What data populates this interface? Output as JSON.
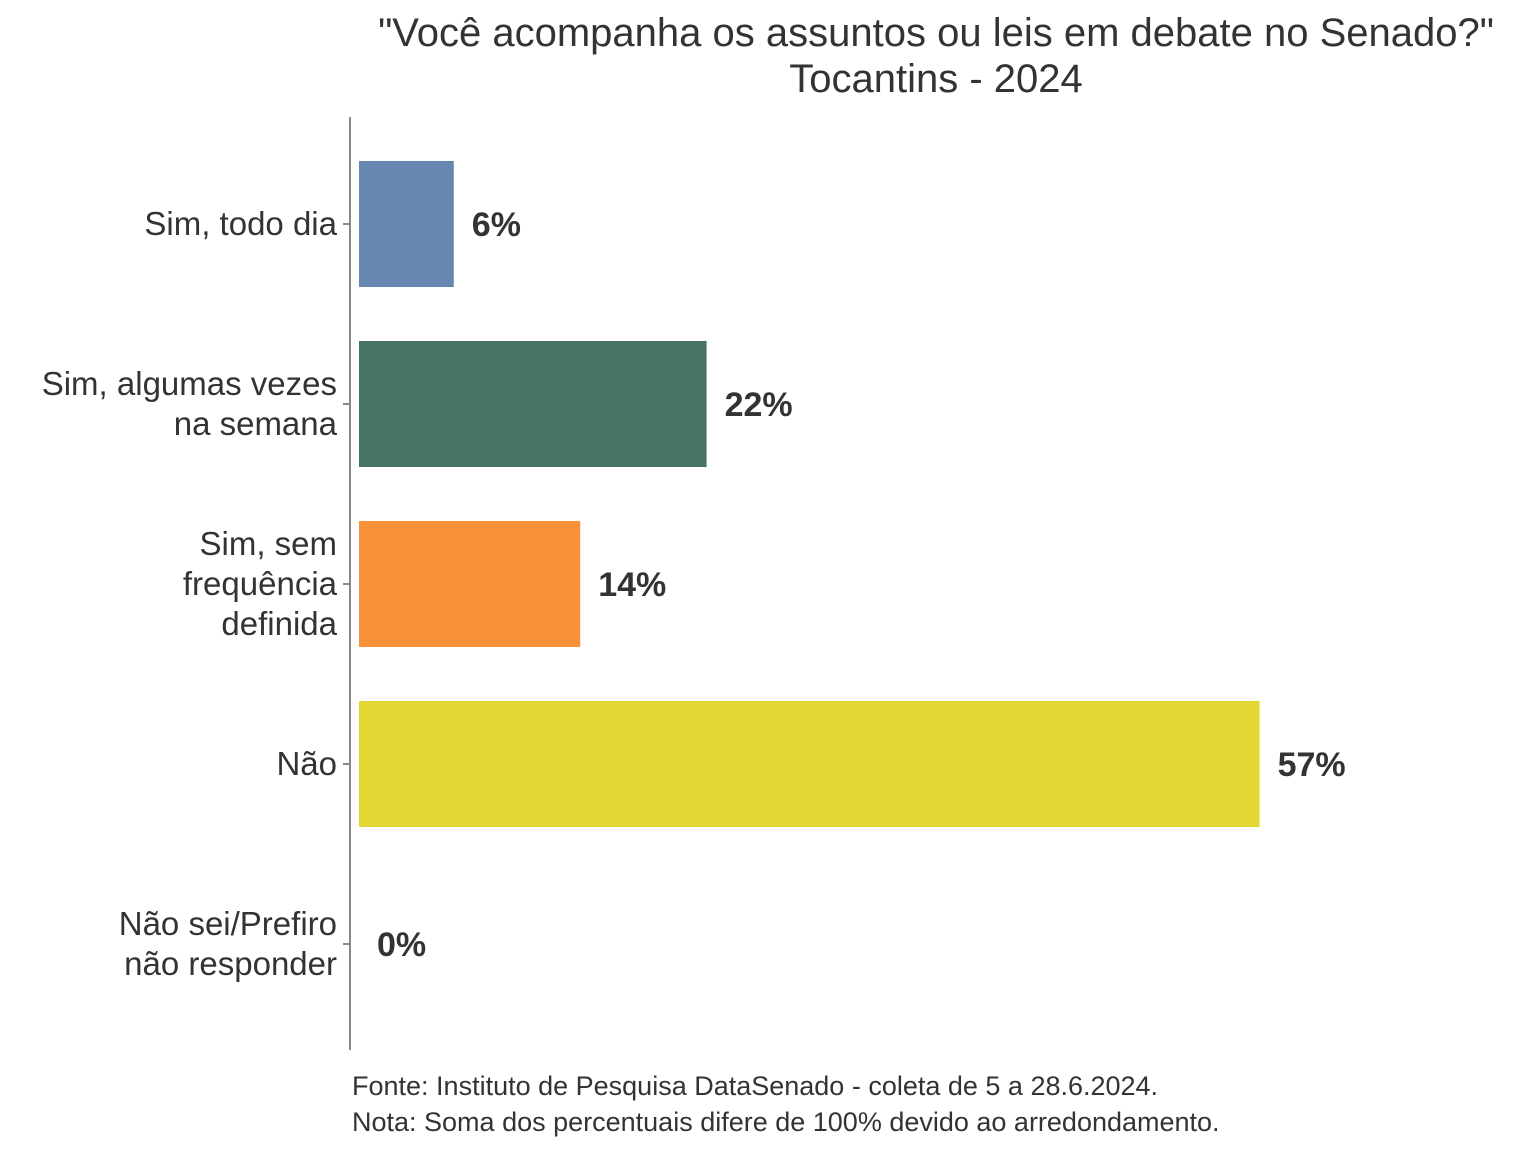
{
  "chart_data": {
    "type": "bar",
    "orientation": "horizontal",
    "title": "\"Você acompanha os assuntos ou leis em debate no Senado?\"",
    "subtitle": "Tocantins - 2024",
    "categories": [
      "Sim, todo dia",
      "Sim, algumas vezes na semana",
      "Sim, sem frequência definida",
      "Não",
      "Não sei/Prefiro não responder"
    ],
    "category_lines": [
      [
        "Sim, todo dia"
      ],
      [
        "Sim, algumas vezes",
        "na semana"
      ],
      [
        "Sim, sem",
        "frequência",
        "definida"
      ],
      [
        "Não"
      ],
      [
        "Não sei/Prefiro",
        "não responder"
      ]
    ],
    "values": [
      6,
      22,
      14,
      57,
      0
    ],
    "data_labels": [
      "6%",
      "22%",
      "14%",
      "57%",
      "0%"
    ],
    "colors": [
      "#6688b0",
      "#467462",
      "#f9913b",
      "#e4d734",
      "#b0b0b0"
    ],
    "xlim": [
      0,
      60
    ],
    "grid": false,
    "legend": "none"
  },
  "footer": {
    "source": "Fonte: Instituto de Pesquisa DataSenado - coleta de 5 a 28.6.2024.",
    "note": "Nota: Soma dos percentuais difere de 100% devido ao arredondamento."
  }
}
